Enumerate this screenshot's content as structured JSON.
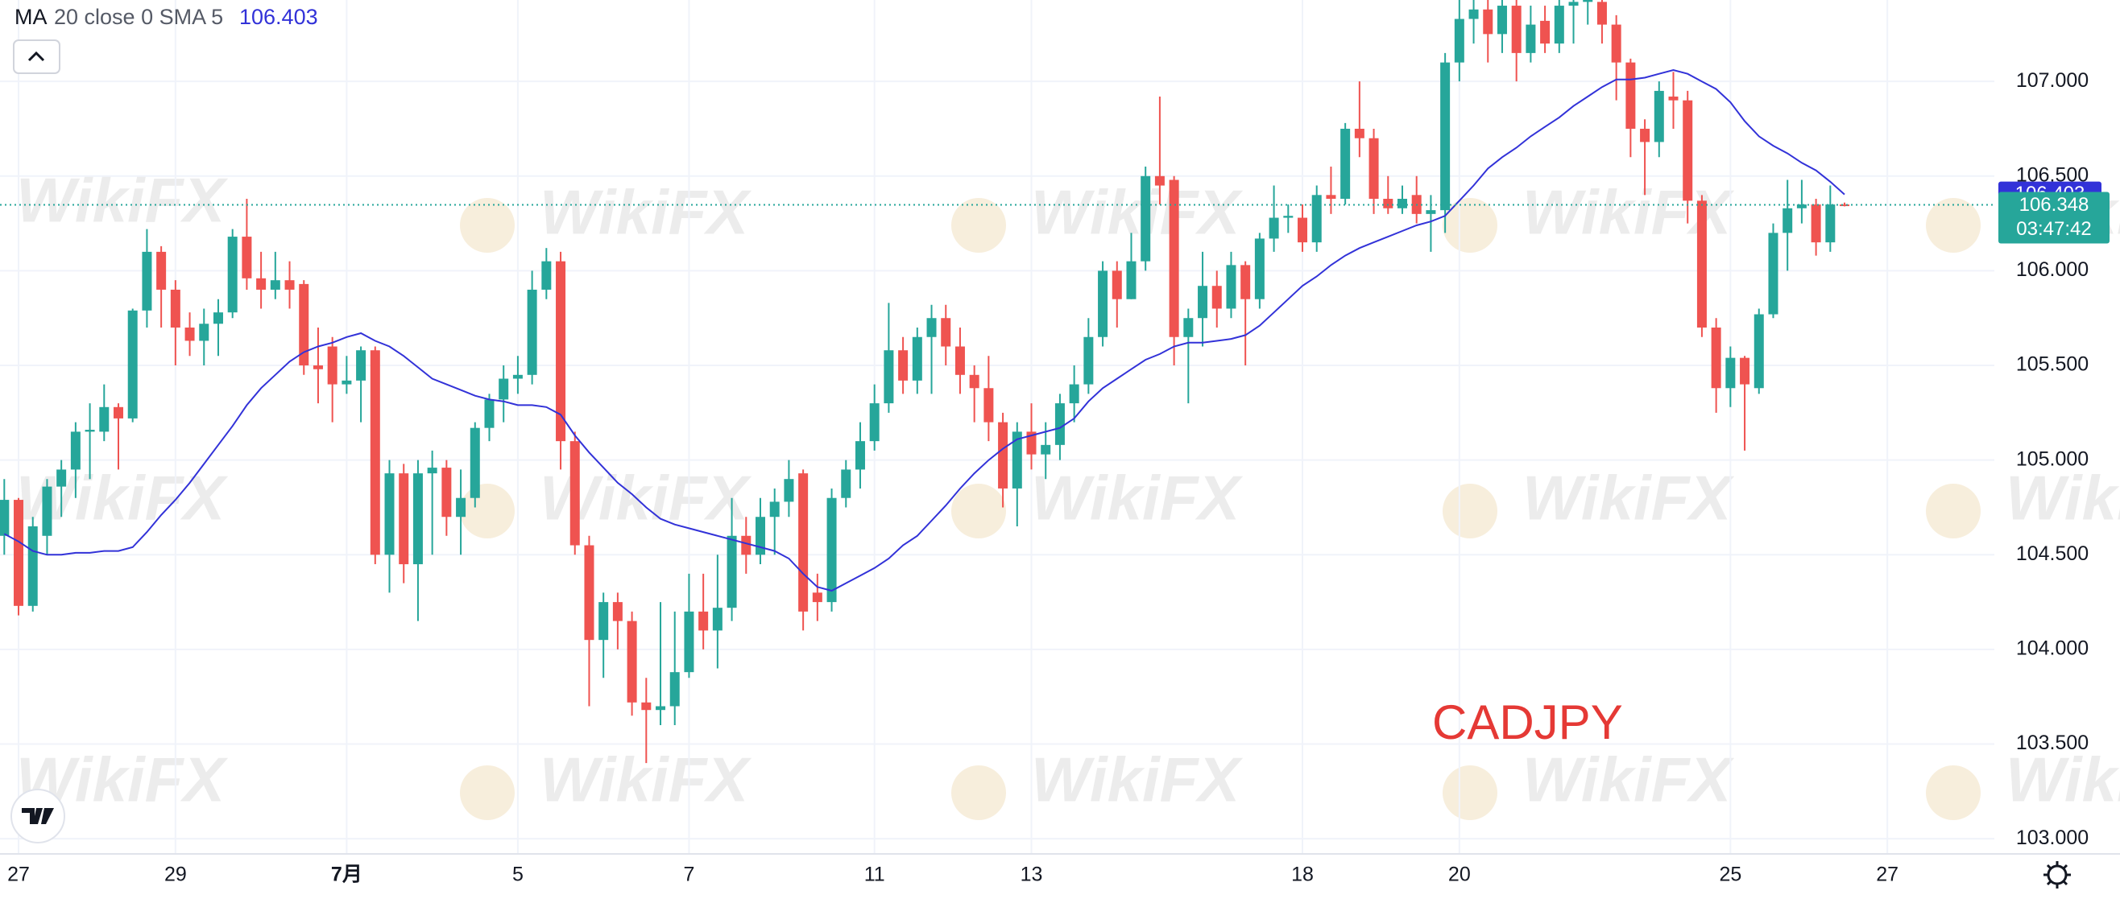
{
  "chart_data": {
    "type": "candlestick",
    "indicator": {
      "name": "MA",
      "params": "20 close 0 SMA 5"
    },
    "ma_label": "106.403",
    "last_price": {
      "value": 106.348,
      "label": "106.348"
    },
    "countdown": "03:47:42",
    "watermark": "WikiFX",
    "xlim": [
      -0.3,
      139.5
    ],
    "ylim": [
      102.92,
      107.43
    ],
    "yticks": [
      {
        "value": 103,
        "label": "103.000"
      },
      {
        "value": 103.5,
        "label": "103.500"
      },
      {
        "value": 104,
        "label": "104.000"
      },
      {
        "value": 104.5,
        "label": "104.500"
      },
      {
        "value": 105,
        "label": "105.000"
      },
      {
        "value": 105.5,
        "label": "105.500"
      },
      {
        "value": 106,
        "label": "106.000"
      },
      {
        "value": 106.5,
        "label": "106.500"
      },
      {
        "value": 107,
        "label": "107.000"
      }
    ],
    "xticks": [
      {
        "value": 1,
        "label": "27"
      },
      {
        "value": 12,
        "label": "29"
      },
      {
        "value": 24,
        "label": "7月"
      },
      {
        "value": 36,
        "label": "5"
      },
      {
        "value": 48,
        "label": "7"
      },
      {
        "value": 61,
        "label": "11"
      },
      {
        "value": 72,
        "label": "13"
      },
      {
        "value": 91,
        "label": "18"
      },
      {
        "value": 102,
        "label": "20"
      },
      {
        "value": 121,
        "label": "25"
      },
      {
        "value": 132,
        "label": "27"
      }
    ],
    "series": [
      {
        "name": "CADJPY",
        "up_color": "#26a69a",
        "down_color": "#ef5350",
        "open": [
          104.6,
          104.79,
          104.23,
          104.6,
          104.86,
          104.95,
          105.15,
          105.15,
          105.28,
          105.22,
          105.79,
          106.1,
          105.9,
          105.7,
          105.63,
          105.72,
          105.78,
          106.18,
          105.96,
          105.9,
          105.95,
          105.93,
          105.5,
          105.6,
          105.4,
          105.42,
          105.58,
          104.5,
          104.93,
          104.45,
          104.93,
          104.96,
          104.7,
          104.8,
          105.17,
          105.32,
          105.43,
          105.45,
          105.9,
          106.05,
          105.1,
          104.55,
          104.05,
          104.25,
          104.15,
          103.72,
          103.68,
          103.7,
          103.88,
          104.2,
          104.1,
          104.22,
          104.6,
          104.5,
          104.7,
          104.78,
          104.93,
          104.3,
          104.25,
          104.8,
          104.95,
          105.1,
          105.3,
          105.58,
          105.42,
          105.65,
          105.75,
          105.6,
          105.45,
          105.38,
          105.2,
          104.85,
          105.15,
          105.03,
          105.08,
          105.3,
          105.4,
          105.65,
          106.0,
          105.85,
          106.05,
          106.5,
          106.48,
          105.65,
          105.75,
          105.92,
          105.8,
          106.03,
          105.85,
          106.17,
          106.28,
          106.28,
          106.15,
          106.4,
          106.38,
          106.75,
          106.7,
          106.38,
          106.33,
          106.4,
          106.3,
          106.32,
          107.1,
          107.33,
          107.38,
          107.25,
          107.4,
          107.15,
          107.32,
          107.2,
          107.4,
          107.42,
          107.42,
          107.3,
          107.1,
          106.75,
          106.68,
          106.92,
          106.9,
          106.37,
          105.7,
          105.38,
          105.54,
          105.38,
          105.77,
          106.2,
          106.33,
          106.35,
          106.15,
          106.35
        ],
        "high": [
          104.9,
          104.8,
          104.7,
          104.9,
          105.0,
          105.2,
          105.3,
          105.4,
          105.3,
          105.8,
          106.22,
          106.13,
          105.95,
          105.78,
          105.8,
          105.85,
          106.22,
          106.38,
          106.1,
          106.1,
          106.05,
          105.95,
          105.7,
          105.65,
          105.55,
          105.6,
          105.6,
          105.0,
          104.98,
          105.0,
          105.05,
          105.0,
          104.95,
          105.2,
          105.35,
          105.5,
          105.55,
          106.0,
          106.12,
          106.1,
          105.15,
          104.6,
          104.3,
          104.3,
          104.2,
          103.85,
          104.25,
          104.2,
          104.4,
          104.4,
          104.5,
          104.8,
          104.7,
          104.8,
          104.85,
          105.0,
          104.95,
          104.4,
          104.85,
          105.0,
          105.2,
          105.4,
          105.83,
          105.65,
          105.7,
          105.82,
          105.82,
          105.7,
          105.5,
          105.55,
          105.25,
          105.2,
          105.3,
          105.2,
          105.35,
          105.5,
          105.75,
          106.05,
          106.05,
          106.2,
          106.55,
          106.92,
          106.5,
          105.8,
          106.1,
          106.0,
          106.1,
          106.05,
          106.2,
          106.45,
          106.35,
          106.35,
          106.45,
          106.55,
          106.78,
          107.0,
          106.75,
          106.5,
          106.45,
          106.5,
          106.4,
          107.15,
          107.45,
          107.45,
          107.5,
          107.5,
          107.5,
          107.4,
          107.4,
          107.5,
          107.5,
          107.5,
          107.45,
          107.35,
          107.12,
          106.8,
          107.0,
          107.05,
          106.95,
          106.4,
          105.75,
          105.6,
          105.55,
          105.8,
          106.25,
          106.48,
          106.48,
          106.38,
          106.45,
          106.36
        ],
        "low": [
          104.5,
          104.18,
          104.2,
          104.5,
          104.7,
          104.8,
          104.9,
          105.1,
          104.95,
          105.2,
          105.7,
          105.7,
          105.5,
          105.55,
          105.5,
          105.55,
          105.75,
          105.9,
          105.8,
          105.85,
          105.8,
          105.45,
          105.3,
          105.2,
          105.35,
          105.2,
          104.45,
          104.3,
          104.35,
          104.15,
          104.5,
          104.6,
          104.5,
          104.75,
          105.1,
          105.2,
          105.35,
          105.4,
          105.85,
          104.95,
          104.5,
          103.7,
          103.85,
          104.0,
          103.65,
          103.4,
          103.6,
          103.6,
          103.85,
          104.0,
          103.9,
          104.15,
          104.4,
          104.45,
          104.5,
          104.7,
          104.1,
          104.15,
          104.2,
          104.75,
          104.85,
          105.05,
          105.25,
          105.35,
          105.35,
          105.35,
          105.5,
          105.35,
          105.2,
          105.1,
          104.75,
          104.65,
          104.95,
          104.9,
          105.0,
          105.2,
          105.35,
          105.6,
          105.7,
          105.85,
          106.0,
          106.35,
          105.5,
          105.3,
          105.6,
          105.7,
          105.75,
          105.5,
          105.8,
          106.1,
          106.2,
          106.1,
          106.1,
          106.3,
          106.35,
          106.6,
          106.3,
          106.3,
          106.3,
          106.25,
          106.1,
          106.2,
          107.0,
          107.2,
          107.1,
          107.15,
          107.0,
          107.1,
          107.15,
          107.15,
          107.2,
          107.3,
          107.2,
          106.9,
          106.6,
          106.4,
          106.6,
          106.75,
          106.25,
          105.65,
          105.25,
          105.28,
          105.05,
          105.35,
          105.75,
          106.0,
          106.25,
          106.08,
          106.1,
          106.34
        ],
        "close": [
          104.79,
          104.23,
          104.65,
          104.86,
          104.95,
          105.15,
          105.16,
          105.28,
          105.22,
          105.79,
          106.1,
          105.9,
          105.7,
          105.63,
          105.72,
          105.78,
          106.18,
          105.96,
          105.9,
          105.95,
          105.9,
          105.5,
          105.48,
          105.4,
          105.42,
          105.58,
          104.5,
          104.93,
          104.45,
          104.93,
          104.96,
          104.7,
          104.8,
          105.17,
          105.32,
          105.43,
          105.45,
          105.9,
          106.05,
          105.1,
          104.55,
          104.05,
          104.25,
          104.15,
          103.72,
          103.68,
          103.7,
          103.88,
          104.2,
          104.1,
          104.22,
          104.6,
          104.5,
          104.7,
          104.78,
          104.9,
          104.2,
          104.25,
          104.8,
          104.95,
          105.1,
          105.3,
          105.58,
          105.42,
          105.65,
          105.75,
          105.6,
          105.45,
          105.38,
          105.2,
          104.85,
          105.15,
          105.03,
          105.08,
          105.3,
          105.4,
          105.65,
          106.0,
          105.85,
          106.05,
          106.5,
          106.45,
          105.65,
          105.75,
          105.92,
          105.8,
          106.03,
          105.85,
          106.17,
          106.28,
          106.29,
          106.15,
          106.4,
          106.38,
          106.75,
          106.7,
          106.38,
          106.33,
          106.38,
          106.3,
          106.32,
          107.1,
          107.33,
          107.38,
          107.25,
          107.4,
          107.15,
          107.3,
          107.2,
          107.4,
          107.42,
          107.45,
          107.3,
          107.1,
          106.75,
          106.68,
          106.95,
          106.9,
          106.37,
          105.7,
          105.38,
          105.54,
          105.4,
          105.77,
          106.2,
          106.33,
          106.35,
          106.15,
          106.35,
          106.348
        ]
      },
      {
        "name": "MA",
        "color": "#3232d8",
        "values": [
          104.61,
          104.57,
          104.52,
          104.5,
          104.5,
          104.51,
          104.51,
          104.52,
          104.52,
          104.54,
          104.62,
          104.71,
          104.79,
          104.88,
          104.98,
          105.08,
          105.18,
          105.29,
          105.38,
          105.45,
          105.52,
          105.57,
          105.6,
          105.62,
          105.65,
          105.67,
          105.63,
          105.6,
          105.55,
          105.49,
          105.43,
          105.4,
          105.37,
          105.34,
          105.32,
          105.31,
          105.29,
          105.29,
          105.28,
          105.24,
          105.13,
          105.04,
          104.96,
          104.88,
          104.82,
          104.75,
          104.69,
          104.66,
          104.64,
          104.62,
          104.6,
          104.58,
          104.56,
          104.54,
          104.52,
          104.48,
          104.4,
          104.33,
          104.31,
          104.35,
          104.39,
          104.43,
          104.48,
          104.55,
          104.6,
          104.68,
          104.76,
          104.85,
          104.93,
          105.0,
          105.06,
          105.11,
          105.13,
          105.15,
          105.17,
          105.22,
          105.31,
          105.38,
          105.43,
          105.48,
          105.53,
          105.56,
          105.6,
          105.62,
          105.62,
          105.63,
          105.64,
          105.66,
          105.71,
          105.78,
          105.85,
          105.92,
          105.97,
          106.03,
          106.08,
          106.12,
          106.15,
          106.18,
          106.21,
          106.24,
          106.26,
          106.29,
          106.37,
          106.45,
          106.54,
          106.6,
          106.65,
          106.71,
          106.76,
          106.81,
          106.87,
          106.92,
          106.97,
          107.01,
          107.01,
          107.02,
          107.04,
          107.06,
          107.04,
          107.0,
          106.96,
          106.89,
          106.79,
          106.71,
          106.66,
          106.62,
          106.57,
          106.53,
          106.47,
          106.403
        ]
      }
    ]
  }
}
